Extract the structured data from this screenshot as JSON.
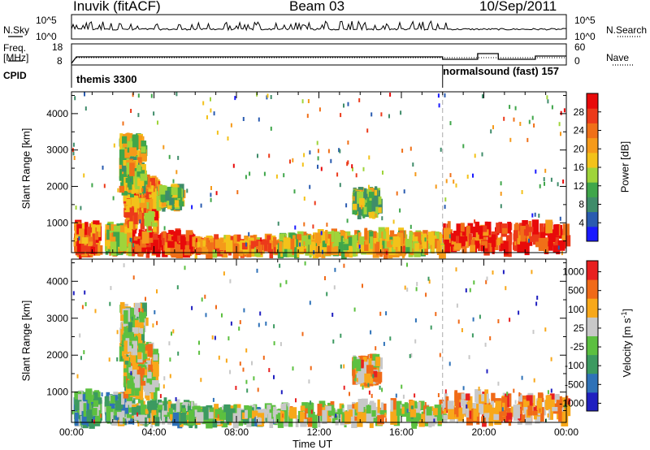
{
  "header": {
    "station": "Inuvik (fitACF)",
    "beam": "Beam 03",
    "date": "10/Sep/2011"
  },
  "noise_panel": {
    "left_label": "N.Sky",
    "right_label": "N.Search",
    "left_ticks": [
      "10^5",
      "10^0"
    ],
    "right_ticks": [
      "10^5",
      "10^0"
    ]
  },
  "freq_panel": {
    "left_label_line1": "Freq.",
    "left_label_line2": "[MHz]",
    "right_label": "Nave",
    "left_ticks": [
      "18",
      "8"
    ],
    "right_ticks": [
      "60",
      "0"
    ]
  },
  "cpid_panel": {
    "label": "CPID",
    "segments": [
      {
        "name": "themis 3300",
        "start_h": 0
      },
      {
        "name": "normalsound (fast) 157",
        "start_h": 18
      }
    ]
  },
  "x_axis": {
    "label": "Time UT",
    "ticks": [
      "00:00",
      "04:00",
      "08:00",
      "12:00",
      "16:00",
      "20:00",
      "00:00"
    ]
  },
  "chart_data": [
    {
      "type": "heatmap",
      "title": "",
      "xlabel": "Time UT",
      "ylabel": "Slant Range [km]",
      "xlim": [
        0,
        24
      ],
      "ylim": [
        180,
        4600
      ],
      "yticks": [
        1000,
        2000,
        3000,
        4000
      ],
      "colorbar": {
        "label": "Power [dB]",
        "ticks": [
          "4",
          "8",
          "12",
          "16",
          "20",
          "24",
          "28"
        ],
        "colors": [
          "#1a1aff",
          "#2a5bb0",
          "#3f8c6a",
          "#3fa64a",
          "#9fd43a",
          "#f3c21a",
          "#f59a1a",
          "#f07018",
          "#ec3a1a",
          "#e80a0a"
        ]
      },
      "regions": [
        {
          "t0": 0.1,
          "t1": 1.2,
          "r0": 200,
          "r1": 900,
          "v": 0.78
        },
        {
          "t0": 1.6,
          "t1": 2.8,
          "r0": 250,
          "r1": 850,
          "v": 0.55
        },
        {
          "t0": 2.9,
          "t1": 5.8,
          "r0": 200,
          "r1": 650,
          "v": 0.92
        },
        {
          "t0": 2.5,
          "t1": 4.0,
          "r0": 900,
          "r1": 2200,
          "v": 0.7
        },
        {
          "t0": 2.3,
          "t1": 3.4,
          "r0": 1900,
          "r1": 3300,
          "v": 0.5
        },
        {
          "t0": 4.1,
          "t1": 5.2,
          "r0": 1500,
          "r1": 1900,
          "v": 0.45
        },
        {
          "t0": 5.8,
          "t1": 10.0,
          "r0": 200,
          "r1": 500,
          "v": 0.68
        },
        {
          "t0": 10.0,
          "t1": 13.8,
          "r0": 200,
          "r1": 650,
          "v": 0.55
        },
        {
          "t0": 13.8,
          "t1": 18.0,
          "r0": 200,
          "r1": 700,
          "v": 0.6
        },
        {
          "t0": 18.0,
          "t1": 24.0,
          "r0": 250,
          "r1": 900,
          "v": 0.9
        },
        {
          "t0": 13.6,
          "t1": 14.8,
          "r0": 1300,
          "r1": 1850,
          "v": 0.42
        }
      ]
    },
    {
      "type": "heatmap",
      "title": "",
      "xlabel": "Time UT",
      "ylabel": "Slant Range [km]",
      "xlim": [
        0,
        24
      ],
      "ylim": [
        180,
        4600
      ],
      "yticks": [
        1000,
        2000,
        3000,
        4000
      ],
      "colorbar": {
        "label": "Velocity [m s^-1]",
        "ticks": [
          "1000",
          "500",
          "100",
          "25",
          "-25",
          "-100",
          "-500",
          "-1000"
        ],
        "colors": [
          "#2020c0",
          "#2f72b8",
          "#3c9a60",
          "#5cc040",
          "#c8c8c8",
          "#f8a81a",
          "#f06a18",
          "#e82020"
        ]
      },
      "regions": [
        {
          "t0": 0.1,
          "t1": 1.2,
          "r0": 200,
          "r1": 900,
          "v": 0.35
        },
        {
          "t0": 1.6,
          "t1": 2.8,
          "r0": 250,
          "r1": 850,
          "v": 0.4
        },
        {
          "t0": 2.9,
          "t1": 5.8,
          "r0": 200,
          "r1": 650,
          "v": 0.45
        },
        {
          "t0": 2.5,
          "t1": 4.0,
          "r0": 900,
          "r1": 2200,
          "v": 0.6
        },
        {
          "t0": 2.3,
          "t1": 3.4,
          "r0": 1900,
          "r1": 3300,
          "v": 0.55
        },
        {
          "t0": 5.8,
          "t1": 10.0,
          "r0": 200,
          "r1": 500,
          "v": 0.45
        },
        {
          "t0": 10.0,
          "t1": 18.0,
          "r0": 200,
          "r1": 650,
          "v": 0.6
        },
        {
          "t0": 18.0,
          "t1": 24.0,
          "r0": 250,
          "r1": 900,
          "v": 0.75
        },
        {
          "t0": 13.6,
          "t1": 14.8,
          "r0": 1300,
          "r1": 1850,
          "v": 0.7
        }
      ]
    }
  ]
}
